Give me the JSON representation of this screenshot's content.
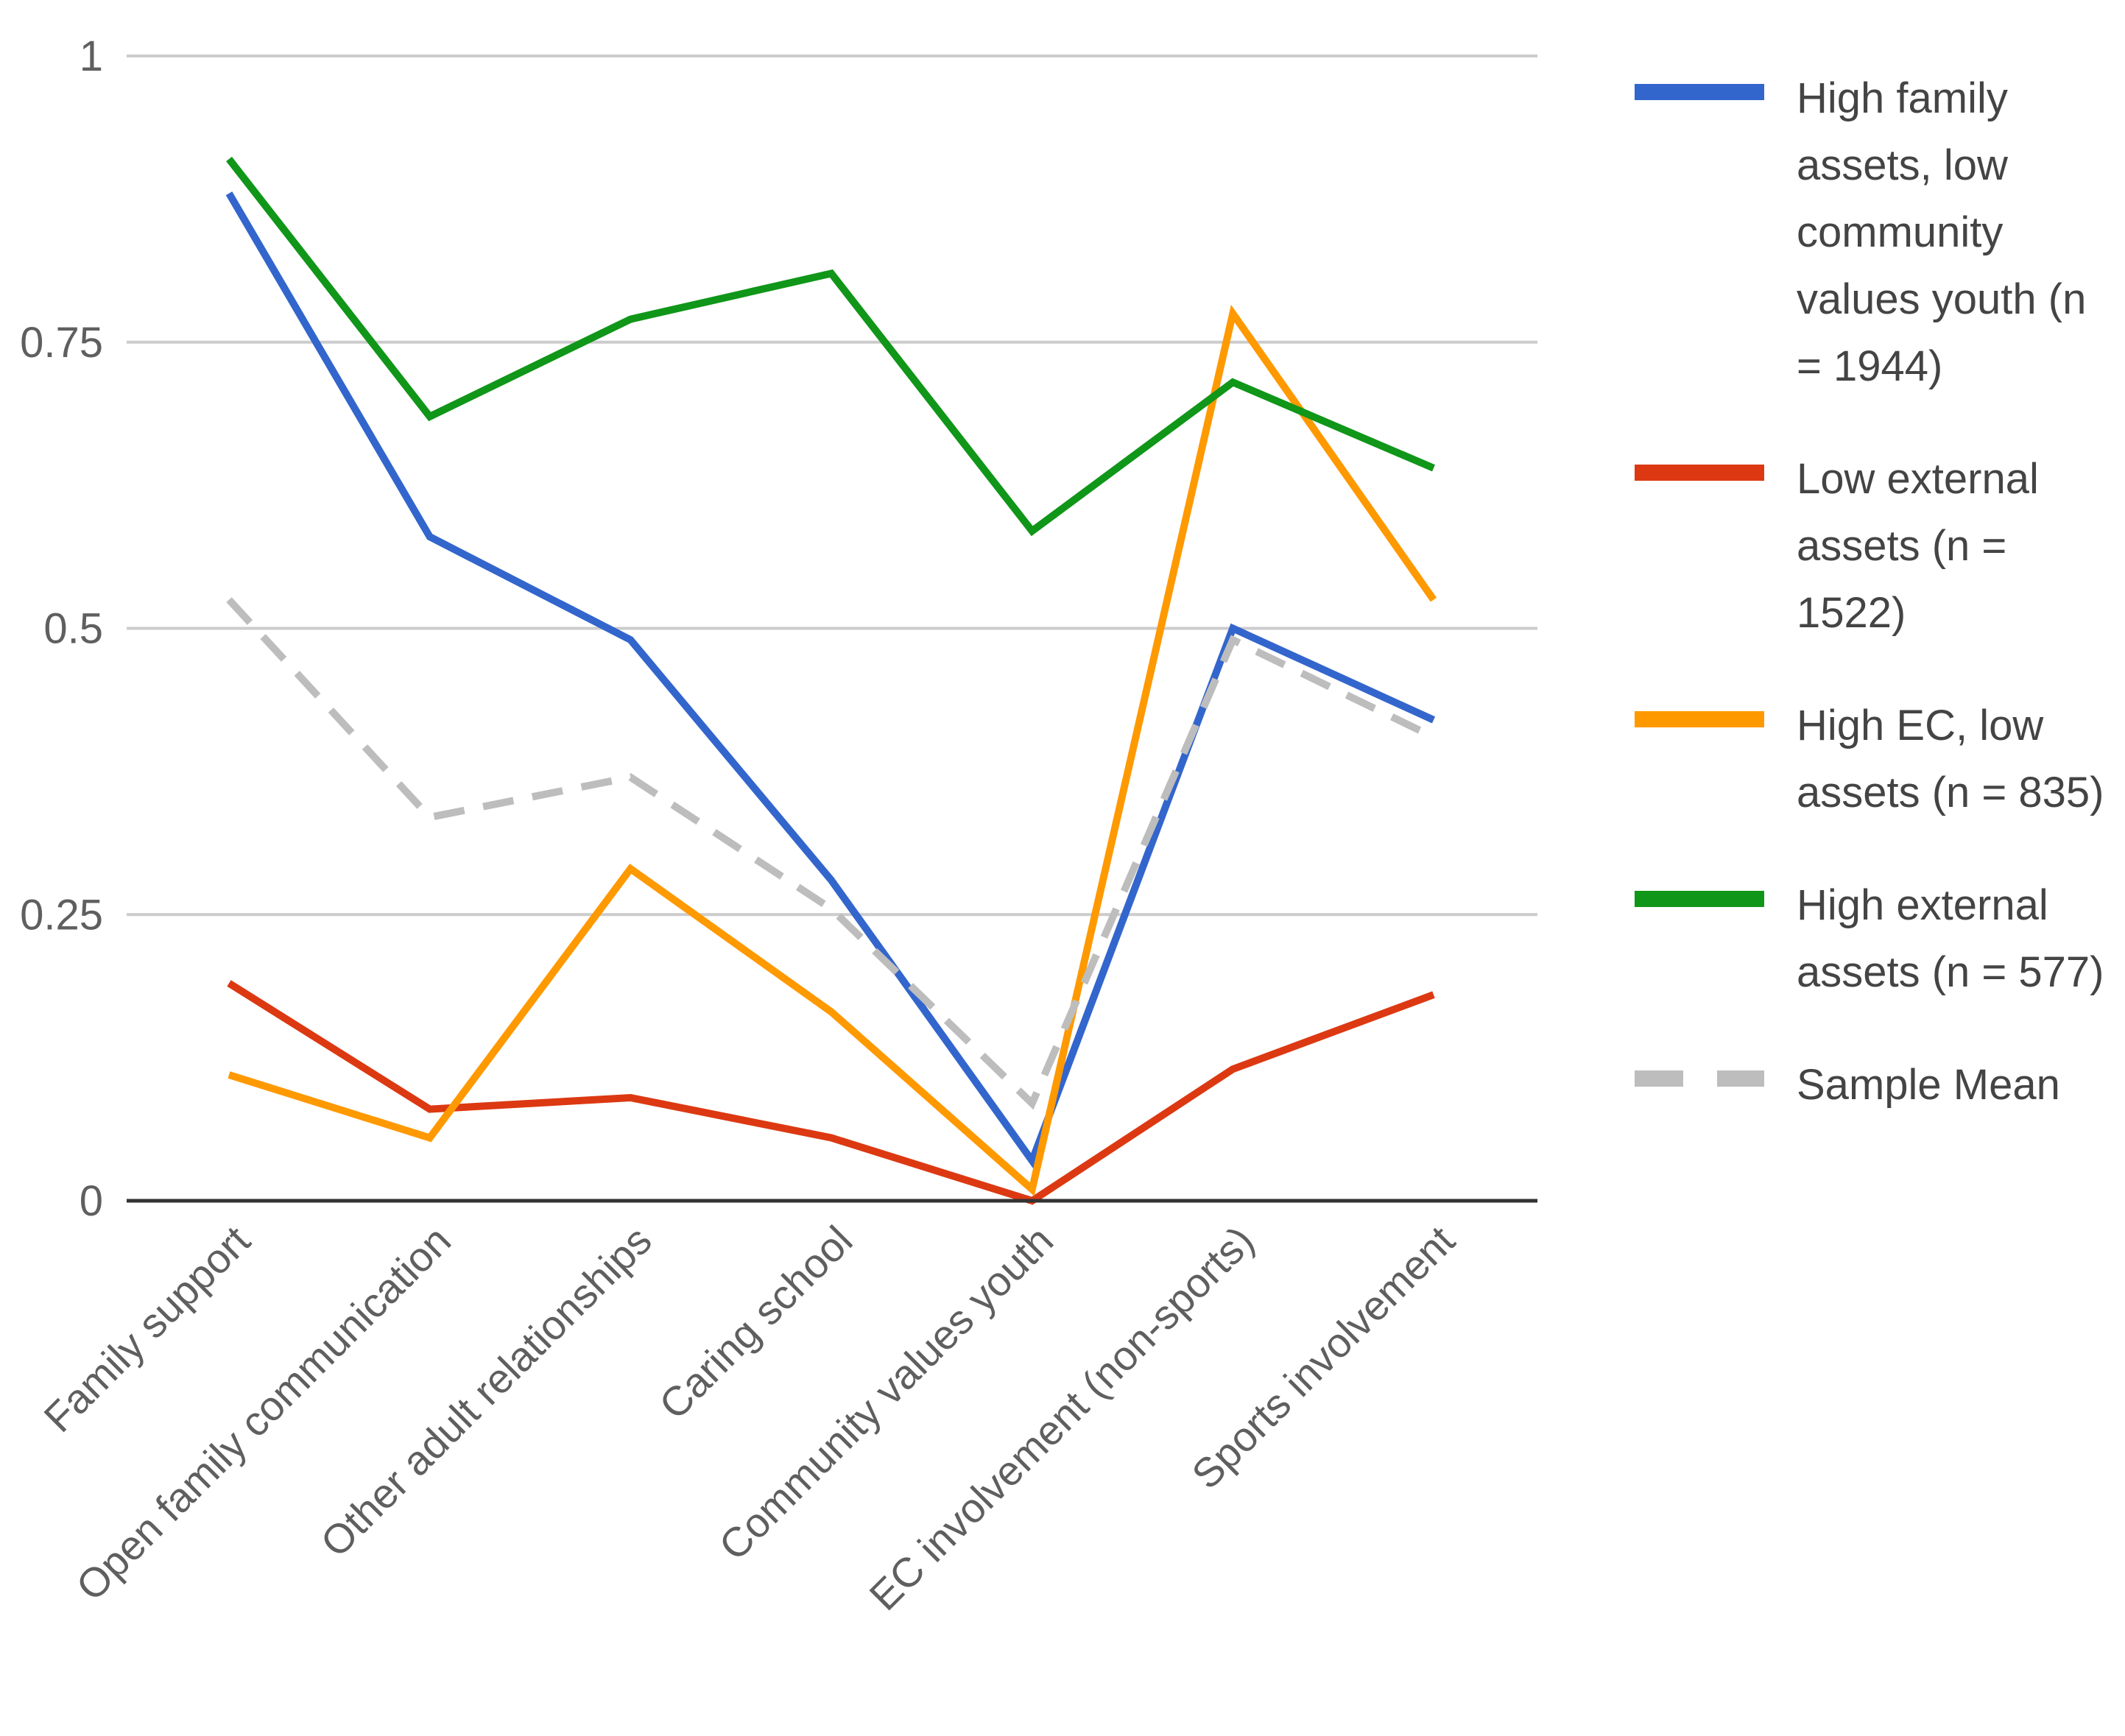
{
  "chart_data": {
    "type": "line",
    "title": "",
    "xlabel": "",
    "ylabel": "",
    "ylim": [
      0,
      1
    ],
    "yticks": [
      "0",
      "0.25",
      "0.5",
      "0.75",
      "1"
    ],
    "grid": true,
    "legend_position": "right",
    "categories": [
      "Family support",
      "Open family communication",
      "Other adult relationships",
      "Caring school",
      "Community values youth",
      "EC involvement (non-sports)",
      "Sports involvement"
    ],
    "series": [
      {
        "name": "High family assets, low community values youth (n = 1944)",
        "legend_lines": [
          "High family",
          "assets, low",
          "community",
          "values youth (n",
          "= 1944)"
        ],
        "color": "#3366cc",
        "dashed": false,
        "values": [
          0.88,
          0.58,
          0.49,
          0.28,
          0.035,
          0.5,
          0.42
        ]
      },
      {
        "name": "Low external assets (n = 1522)",
        "legend_lines": [
          "Low external",
          "assets (n =",
          "1522)"
        ],
        "color": "#dc3912",
        "dashed": false,
        "values": [
          0.19,
          0.08,
          0.09,
          0.055,
          0.0,
          0.115,
          0.18
        ]
      },
      {
        "name": "High EC, low assets (n = 835)",
        "legend_lines": [
          "High EC, low",
          "assets (n = 835)"
        ],
        "color": "#ff9900",
        "dashed": false,
        "values": [
          0.11,
          0.055,
          0.29,
          0.165,
          0.01,
          0.775,
          0.525
        ]
      },
      {
        "name": "High external assets (n = 577)",
        "legend_lines": [
          "High external",
          "assets (n = 577)"
        ],
        "color": "#109618",
        "dashed": false,
        "values": [
          0.91,
          0.685,
          0.77,
          0.81,
          0.585,
          0.715,
          0.64
        ]
      },
      {
        "name": "Sample Mean",
        "legend_lines": [
          "Sample Mean"
        ],
        "color": "#bdbdbd",
        "dashed": true,
        "values": [
          0.525,
          0.335,
          0.37,
          0.255,
          0.085,
          0.49,
          0.405
        ]
      }
    ]
  }
}
